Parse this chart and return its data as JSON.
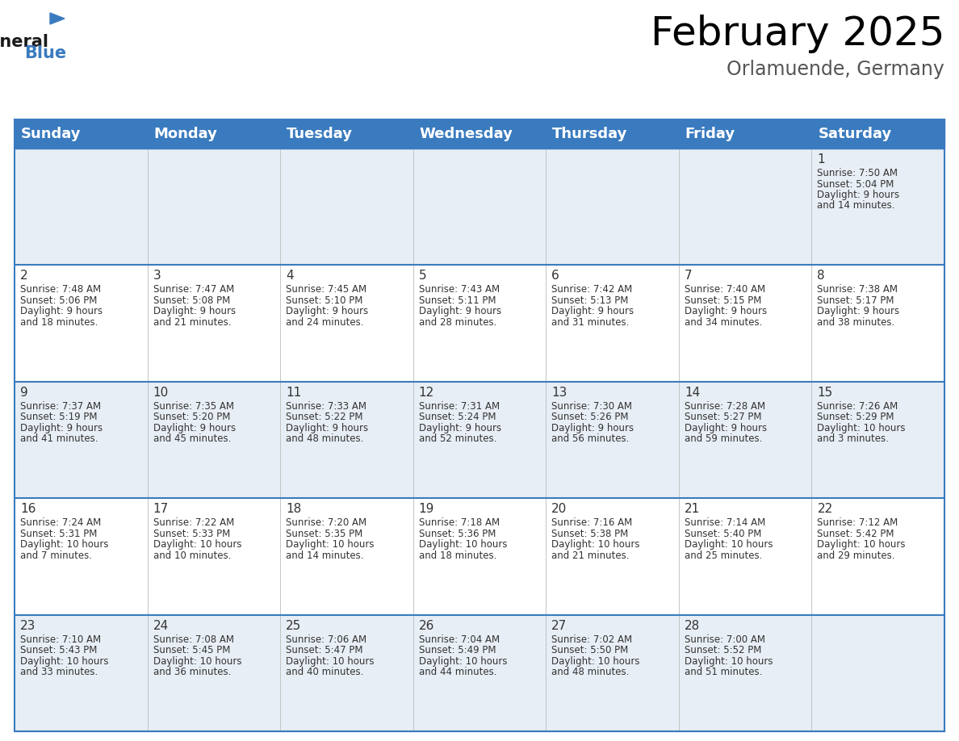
{
  "title": "February 2025",
  "subtitle": "Orlamuende, Germany",
  "header_color": "#3a7bbf",
  "header_text_color": "#ffffff",
  "cell_bg_row0": "#e8eef5",
  "cell_bg_row1": "#ffffff",
  "cell_bg_row2": "#e8eef5",
  "cell_bg_row3": "#ffffff",
  "cell_bg_row4": "#e8eef5",
  "border_color": "#3a7bbf",
  "row_separator_color": "#3a7bbf",
  "text_color": "#333333",
  "subtitle_color": "#555555",
  "day_names": [
    "Sunday",
    "Monday",
    "Tuesday",
    "Wednesday",
    "Thursday",
    "Friday",
    "Saturday"
  ],
  "title_fontsize": 36,
  "subtitle_fontsize": 17,
  "header_fontsize": 13,
  "day_num_fontsize": 11,
  "cell_fontsize": 8.5,
  "days": [
    {
      "day": 1,
      "col": 6,
      "row": 0,
      "sunrise": "7:50 AM",
      "sunset": "5:04 PM",
      "daylight": "9 hours and 14 minutes"
    },
    {
      "day": 2,
      "col": 0,
      "row": 1,
      "sunrise": "7:48 AM",
      "sunset": "5:06 PM",
      "daylight": "9 hours and 18 minutes"
    },
    {
      "day": 3,
      "col": 1,
      "row": 1,
      "sunrise": "7:47 AM",
      "sunset": "5:08 PM",
      "daylight": "9 hours and 21 minutes"
    },
    {
      "day": 4,
      "col": 2,
      "row": 1,
      "sunrise": "7:45 AM",
      "sunset": "5:10 PM",
      "daylight": "9 hours and 24 minutes"
    },
    {
      "day": 5,
      "col": 3,
      "row": 1,
      "sunrise": "7:43 AM",
      "sunset": "5:11 PM",
      "daylight": "9 hours and 28 minutes"
    },
    {
      "day": 6,
      "col": 4,
      "row": 1,
      "sunrise": "7:42 AM",
      "sunset": "5:13 PM",
      "daylight": "9 hours and 31 minutes"
    },
    {
      "day": 7,
      "col": 5,
      "row": 1,
      "sunrise": "7:40 AM",
      "sunset": "5:15 PM",
      "daylight": "9 hours and 34 minutes"
    },
    {
      "day": 8,
      "col": 6,
      "row": 1,
      "sunrise": "7:38 AM",
      "sunset": "5:17 PM",
      "daylight": "9 hours and 38 minutes"
    },
    {
      "day": 9,
      "col": 0,
      "row": 2,
      "sunrise": "7:37 AM",
      "sunset": "5:19 PM",
      "daylight": "9 hours and 41 minutes"
    },
    {
      "day": 10,
      "col": 1,
      "row": 2,
      "sunrise": "7:35 AM",
      "sunset": "5:20 PM",
      "daylight": "9 hours and 45 minutes"
    },
    {
      "day": 11,
      "col": 2,
      "row": 2,
      "sunrise": "7:33 AM",
      "sunset": "5:22 PM",
      "daylight": "9 hours and 48 minutes"
    },
    {
      "day": 12,
      "col": 3,
      "row": 2,
      "sunrise": "7:31 AM",
      "sunset": "5:24 PM",
      "daylight": "9 hours and 52 minutes"
    },
    {
      "day": 13,
      "col": 4,
      "row": 2,
      "sunrise": "7:30 AM",
      "sunset": "5:26 PM",
      "daylight": "9 hours and 56 minutes"
    },
    {
      "day": 14,
      "col": 5,
      "row": 2,
      "sunrise": "7:28 AM",
      "sunset": "5:27 PM",
      "daylight": "9 hours and 59 minutes"
    },
    {
      "day": 15,
      "col": 6,
      "row": 2,
      "sunrise": "7:26 AM",
      "sunset": "5:29 PM",
      "daylight": "10 hours and 3 minutes"
    },
    {
      "day": 16,
      "col": 0,
      "row": 3,
      "sunrise": "7:24 AM",
      "sunset": "5:31 PM",
      "daylight": "10 hours and 7 minutes"
    },
    {
      "day": 17,
      "col": 1,
      "row": 3,
      "sunrise": "7:22 AM",
      "sunset": "5:33 PM",
      "daylight": "10 hours and 10 minutes"
    },
    {
      "day": 18,
      "col": 2,
      "row": 3,
      "sunrise": "7:20 AM",
      "sunset": "5:35 PM",
      "daylight": "10 hours and 14 minutes"
    },
    {
      "day": 19,
      "col": 3,
      "row": 3,
      "sunrise": "7:18 AM",
      "sunset": "5:36 PM",
      "daylight": "10 hours and 18 minutes"
    },
    {
      "day": 20,
      "col": 4,
      "row": 3,
      "sunrise": "7:16 AM",
      "sunset": "5:38 PM",
      "daylight": "10 hours and 21 minutes"
    },
    {
      "day": 21,
      "col": 5,
      "row": 3,
      "sunrise": "7:14 AM",
      "sunset": "5:40 PM",
      "daylight": "10 hours and 25 minutes"
    },
    {
      "day": 22,
      "col": 6,
      "row": 3,
      "sunrise": "7:12 AM",
      "sunset": "5:42 PM",
      "daylight": "10 hours and 29 minutes"
    },
    {
      "day": 23,
      "col": 0,
      "row": 4,
      "sunrise": "7:10 AM",
      "sunset": "5:43 PM",
      "daylight": "10 hours and 33 minutes"
    },
    {
      "day": 24,
      "col": 1,
      "row": 4,
      "sunrise": "7:08 AM",
      "sunset": "5:45 PM",
      "daylight": "10 hours and 36 minutes"
    },
    {
      "day": 25,
      "col": 2,
      "row": 4,
      "sunrise": "7:06 AM",
      "sunset": "5:47 PM",
      "daylight": "10 hours and 40 minutes"
    },
    {
      "day": 26,
      "col": 3,
      "row": 4,
      "sunrise": "7:04 AM",
      "sunset": "5:49 PM",
      "daylight": "10 hours and 44 minutes"
    },
    {
      "day": 27,
      "col": 4,
      "row": 4,
      "sunrise": "7:02 AM",
      "sunset": "5:50 PM",
      "daylight": "10 hours and 48 minutes"
    },
    {
      "day": 28,
      "col": 5,
      "row": 4,
      "sunrise": "7:00 AM",
      "sunset": "5:52 PM",
      "daylight": "10 hours and 51 minutes"
    }
  ],
  "num_rows": 5,
  "num_cols": 7,
  "logo_general_color": "#1a1a1a",
  "logo_blue_color": "#3a7bbf"
}
